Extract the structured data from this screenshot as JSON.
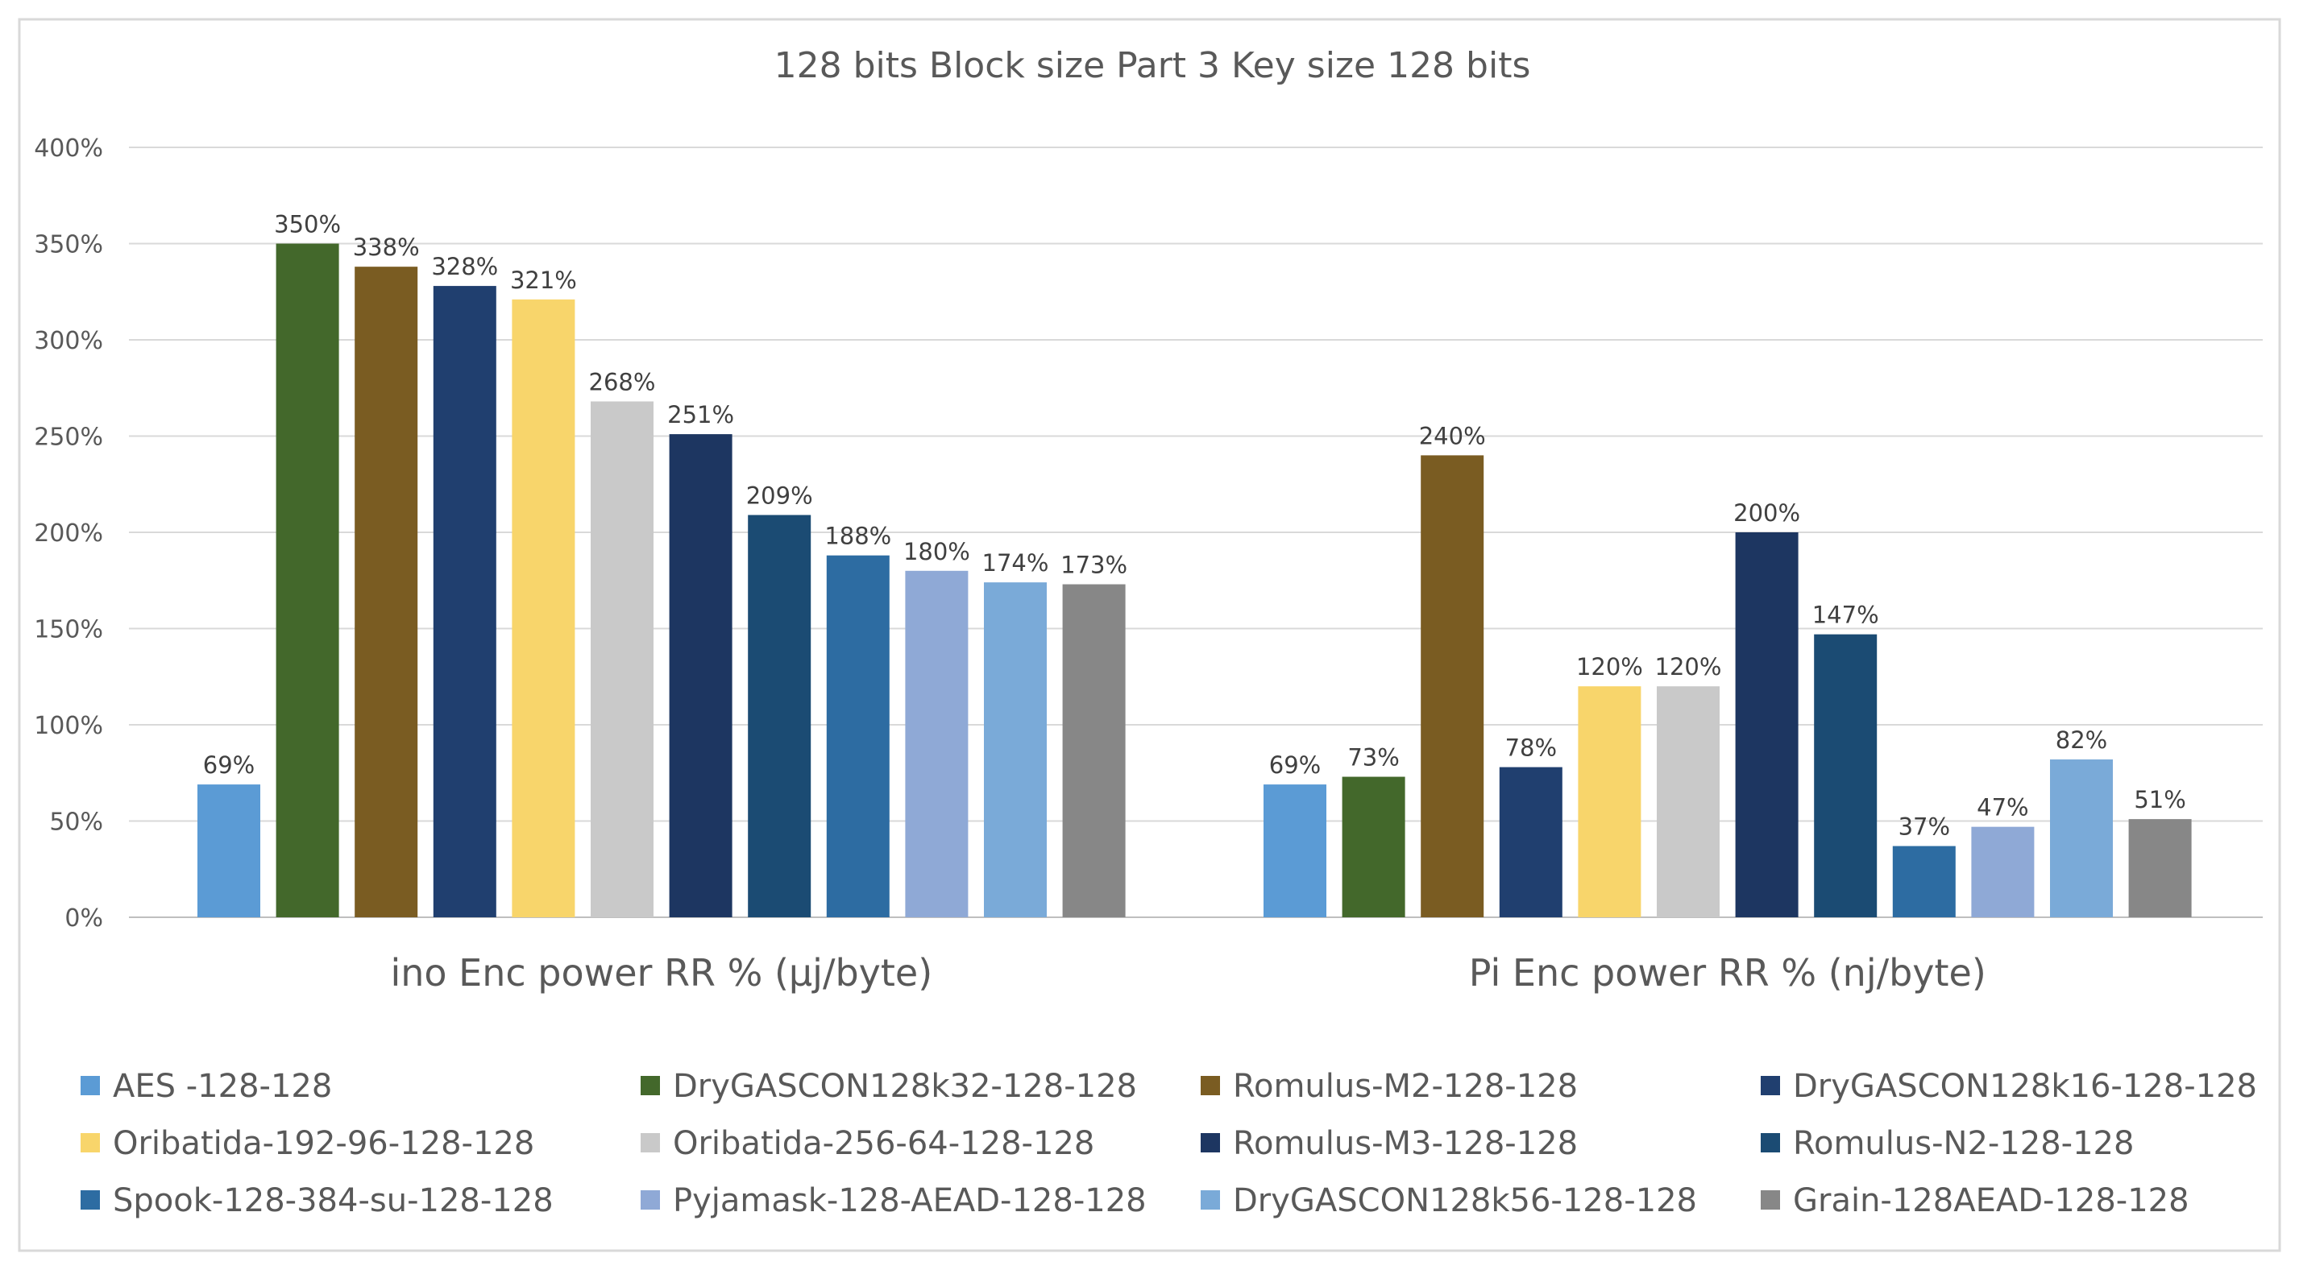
{
  "chart_data": {
    "type": "bar",
    "title": "128 bits Block size Part 3 Key size 128 bits",
    "xlabel": "",
    "ylabel": "",
    "ylim": [
      0,
      400
    ],
    "y_ticks": [
      "0%",
      "50%",
      "100%",
      "150%",
      "200%",
      "250%",
      "300%",
      "350%",
      "400%"
    ],
    "grid": true,
    "legend_position": "bottom",
    "categories": [
      "ino Enc power RR % (µj/byte)",
      "Pi Enc power RR % (nj/byte)"
    ],
    "series": [
      {
        "name": "AES -128-128",
        "color": "#5B9BD5",
        "values": [
          69,
          69
        ],
        "labels": [
          "69%",
          "69%"
        ]
      },
      {
        "name": "DryGASCON128k32-128-128",
        "color": "#43682B",
        "values": [
          350,
          73
        ],
        "labels": [
          "350%",
          "73%"
        ]
      },
      {
        "name": "Romulus-M2-128-128",
        "color": "#7A5C22",
        "values": [
          338,
          240
        ],
        "labels": [
          "338%",
          "240%"
        ]
      },
      {
        "name": "DryGASCON128k16-128-128",
        "color": "#203F6F",
        "values": [
          328,
          78
        ],
        "labels": [
          "328%",
          "78%"
        ]
      },
      {
        "name": "Oribatida-192-96-128-128",
        "color": "#F8D56B",
        "values": [
          321,
          120
        ],
        "labels": [
          "321%",
          "120%"
        ]
      },
      {
        "name": "Oribatida-256-64-128-128",
        "color": "#C9C9C9",
        "values": [
          268,
          120
        ],
        "labels": [
          "268%",
          "120%"
        ]
      },
      {
        "name": "Romulus-M3-128-128",
        "color": "#1D3661",
        "values": [
          251,
          200
        ],
        "labels": [
          "251%",
          "200%"
        ]
      },
      {
        "name": "Romulus-N2-128-128",
        "color": "#1B4B73",
        "values": [
          209,
          147
        ],
        "labels": [
          "209%",
          "147%"
        ]
      },
      {
        "name": "Spook-128-384-su-128-128",
        "color": "#2D6CA2",
        "values": [
          188,
          37
        ],
        "labels": [
          "188%",
          "37%"
        ]
      },
      {
        "name": "Pyjamask-128-AEAD-128-128",
        "color": "#8FA9D6",
        "values": [
          180,
          47
        ],
        "labels": [
          "180%",
          "47%"
        ]
      },
      {
        "name": "DryGASCON128k56-128-128",
        "color": "#7AAAD8",
        "values": [
          174,
          82
        ],
        "labels": [
          "174%",
          "82%"
        ]
      },
      {
        "name": "Grain-128AEAD-128-128",
        "color": "#878787",
        "values": [
          173,
          51
        ],
        "labels": [
          "173%",
          "51%"
        ]
      }
    ]
  },
  "colors": {
    "frame": "#D9D9D9",
    "gridline": "#D9D9D9",
    "axis": "#BFBFBF"
  }
}
